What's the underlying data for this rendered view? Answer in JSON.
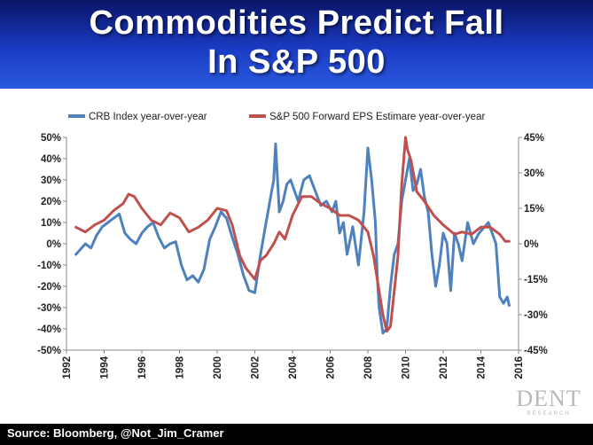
{
  "header": {
    "title_line1": "Commodities Predict Fall",
    "title_line2": "In S&P 500"
  },
  "footer": {
    "source": "Source: Bloomberg, @Not_Jim_Cramer"
  },
  "logo": {
    "word": "DENT",
    "sub": "RESEARCH"
  },
  "colors": {
    "crb": "#4f81bd",
    "sp": "#c0504d",
    "background": "#ffffff",
    "header": "#1b3bc4"
  },
  "chart_data": {
    "type": "line",
    "title": "Commodities Predict Fall In S&P 500",
    "legend_position": "top",
    "x_ticks": [
      "1992",
      "1994",
      "1996",
      "1998",
      "2000",
      "2002",
      "2004",
      "2006",
      "2008",
      "2010",
      "2012",
      "2014",
      "2016"
    ],
    "xlim": [
      1992,
      2016
    ],
    "y_left": {
      "ticks": [
        "50%",
        "40%",
        "30%",
        "20%",
        "10%",
        "0%",
        "-10%",
        "-20%",
        "-30%",
        "-40%",
        "-50%"
      ],
      "ylim": [
        -50,
        50
      ]
    },
    "y_right": {
      "ticks": [
        "45%",
        "30%",
        "15%",
        "0%",
        "-15%",
        "-30%",
        "-45%"
      ],
      "ylim": [
        -45,
        45
      ]
    },
    "series": [
      {
        "name": "CRB Index year-over-year",
        "axis": "left",
        "x": [
          1992.5,
          1992.7,
          1993.0,
          1993.3,
          1993.6,
          1993.9,
          1994.2,
          1994.5,
          1994.8,
          1995.1,
          1995.4,
          1995.7,
          1996.0,
          1996.3,
          1996.6,
          1996.9,
          1997.2,
          1997.5,
          1997.8,
          1998.1,
          1998.4,
          1998.7,
          1999.0,
          1999.3,
          1999.6,
          1999.9,
          2000.2,
          2000.5,
          2000.8,
          2001.1,
          2001.4,
          2001.7,
          2002.0,
          2002.3,
          2002.6,
          2002.9,
          2003.0,
          2003.1,
          2003.3,
          2003.5,
          2003.7,
          2003.9,
          2004.1,
          2004.3,
          2004.6,
          2004.9,
          2005.2,
          2005.5,
          2005.8,
          2006.1,
          2006.3,
          2006.5,
          2006.7,
          2006.9,
          2007.2,
          2007.5,
          2007.8,
          2008.0,
          2008.2,
          2008.4,
          2008.5,
          2008.6,
          2008.8,
          2009.0,
          2009.2,
          2009.4,
          2009.6,
          2009.8,
          2010.0,
          2010.2,
          2010.4,
          2010.6,
          2010.8,
          2011.0,
          2011.2,
          2011.4,
          2011.6,
          2011.8,
          2012.0,
          2012.2,
          2012.4,
          2012.6,
          2012.8,
          2013.0,
          2013.3,
          2013.6,
          2013.9,
          2014.2,
          2014.4,
          2014.6,
          2014.8,
          2015.0,
          2015.2,
          2015.4,
          2015.5
        ],
        "values": [
          -5,
          -3,
          0,
          -2,
          4,
          8,
          10,
          12,
          14,
          5,
          2,
          0,
          5,
          8,
          10,
          3,
          -2,
          0,
          1,
          -10,
          -17,
          -15,
          -18,
          -12,
          2,
          8,
          15,
          12,
          3,
          -5,
          -15,
          -22,
          -23,
          -5,
          10,
          25,
          30,
          47,
          15,
          20,
          28,
          30,
          25,
          20,
          30,
          32,
          25,
          18,
          20,
          15,
          20,
          5,
          10,
          -5,
          8,
          -10,
          15,
          45,
          30,
          10,
          -15,
          -30,
          -42,
          -40,
          -20,
          -5,
          0,
          20,
          30,
          40,
          25,
          28,
          35,
          22,
          15,
          -5,
          -20,
          -10,
          5,
          0,
          -22,
          5,
          0,
          -8,
          10,
          0,
          5,
          8,
          10,
          5,
          0,
          -25,
          -28,
          -25,
          -29
        ]
      },
      {
        "name": "S&P 500 Forward EPS Estimare year-over-year",
        "axis": "right",
        "x": [
          1992.5,
          1993.0,
          1993.5,
          1994.0,
          1994.5,
          1995.0,
          1995.3,
          1995.6,
          1996.0,
          1996.5,
          1997.0,
          1997.5,
          1998.0,
          1998.5,
          1999.0,
          1999.5,
          2000.0,
          2000.5,
          2000.8,
          2001.2,
          2001.5,
          2001.8,
          2002.0,
          2002.3,
          2002.6,
          2003.0,
          2003.3,
          2003.6,
          2004.0,
          2004.5,
          2005.0,
          2005.5,
          2006.0,
          2006.5,
          2007.0,
          2007.5,
          2008.0,
          2008.3,
          2008.6,
          2008.8,
          2009.0,
          2009.2,
          2009.4,
          2009.6,
          2009.8,
          2010.0,
          2010.1,
          2010.3,
          2010.6,
          2011.0,
          2011.5,
          2012.0,
          2012.3,
          2012.6,
          2013.0,
          2013.5,
          2014.0,
          2014.5,
          2015.0,
          2015.3,
          2015.5
        ],
        "values": [
          7,
          5,
          8,
          10,
          14,
          17,
          21,
          20,
          15,
          10,
          8,
          13,
          11,
          5,
          7,
          10,
          15,
          14,
          8,
          -5,
          -10,
          -13,
          -15,
          -7,
          -5,
          0,
          5,
          2,
          12,
          20,
          20,
          17,
          15,
          12,
          12,
          10,
          5,
          -5,
          -20,
          -30,
          -37,
          -35,
          -20,
          -5,
          25,
          45,
          40,
          35,
          22,
          18,
          12,
          8,
          6,
          4,
          5,
          4,
          7,
          7,
          4,
          1,
          1
        ]
      }
    ]
  }
}
